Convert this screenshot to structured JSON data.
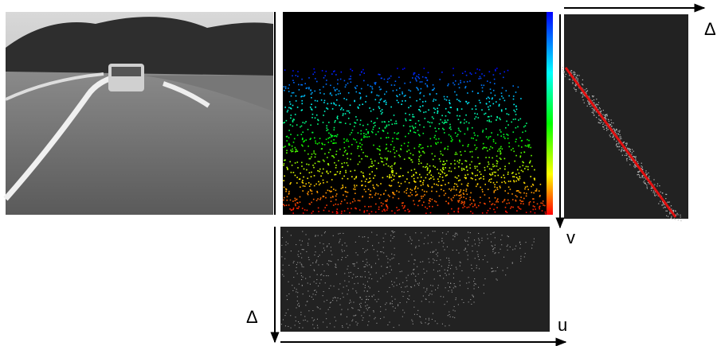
{
  "labels": {
    "v_disparity_axis": "Δ",
    "v_axis": "v",
    "u_disparity_axis": "Δ",
    "u_axis": "u"
  }
}
